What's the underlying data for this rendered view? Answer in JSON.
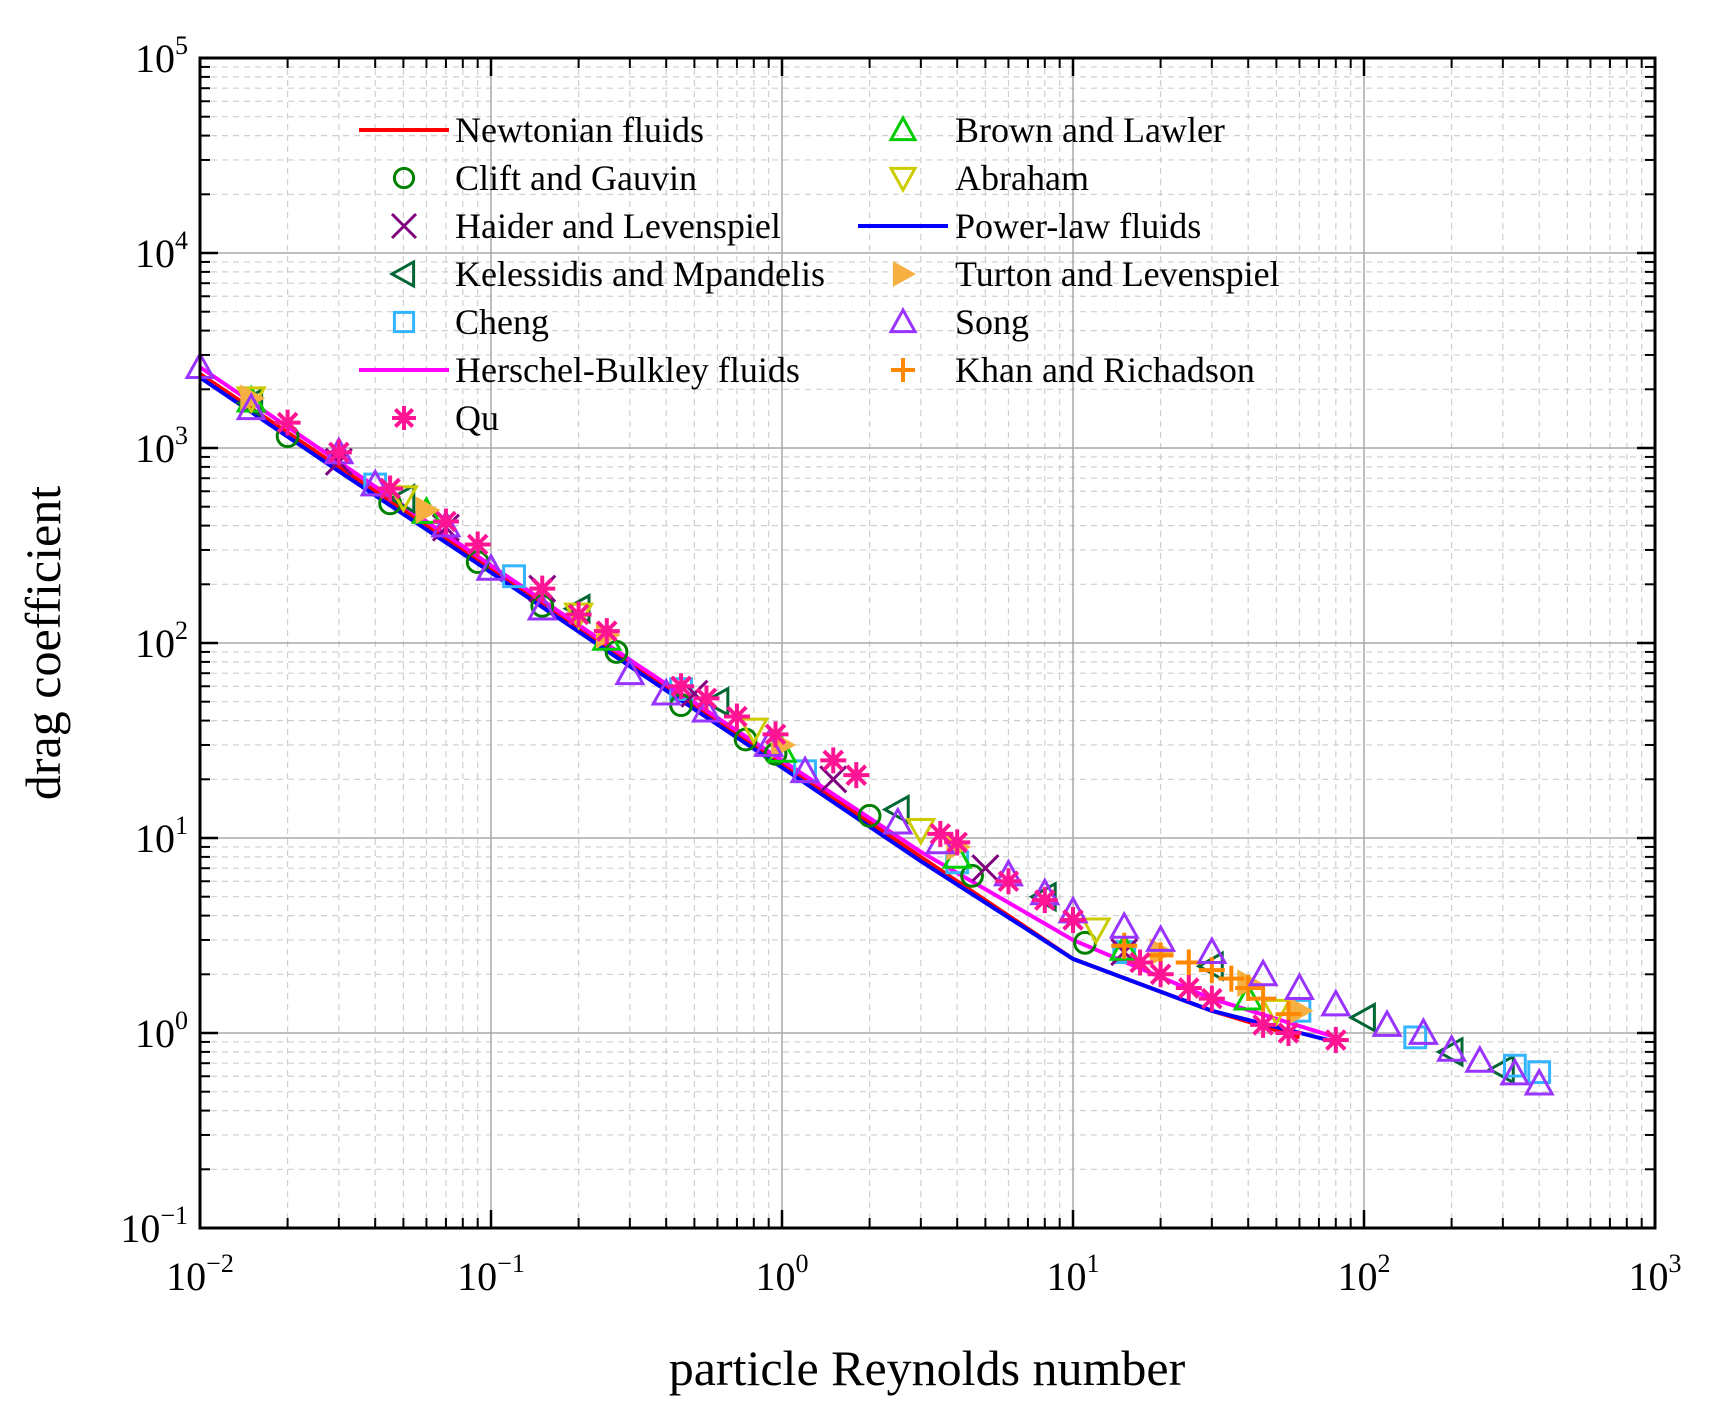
{
  "chart_data": {
    "type": "scatter",
    "x_scale": "log",
    "y_scale": "log",
    "xlim": [
      0.01,
      1000
    ],
    "ylim": [
      0.1,
      100000
    ],
    "xlabel": "particle Reynolds number",
    "ylabel": "drag coefficient",
    "x_ticks": [
      {
        "base": "10",
        "exp": "−2",
        "value": 0.01
      },
      {
        "base": "10",
        "exp": "−1",
        "value": 0.1
      },
      {
        "base": "10",
        "exp": "0",
        "value": 1
      },
      {
        "base": "10",
        "exp": "1",
        "value": 10
      },
      {
        "base": "10",
        "exp": "2",
        "value": 100
      },
      {
        "base": "10",
        "exp": "3",
        "value": 1000
      }
    ],
    "y_ticks": [
      {
        "base": "10",
        "exp": "−1",
        "value": 0.1
      },
      {
        "base": "10",
        "exp": "0",
        "value": 1
      },
      {
        "base": "10",
        "exp": "1",
        "value": 10
      },
      {
        "base": "10",
        "exp": "2",
        "value": 100
      },
      {
        "base": "10",
        "exp": "3",
        "value": 1000
      },
      {
        "base": "10",
        "exp": "4",
        "value": 10000
      },
      {
        "base": "10",
        "exp": "5",
        "value": 100000
      }
    ],
    "grid": true,
    "legend_position": "top-left",
    "series": [
      {
        "name": "Newtonian fluids",
        "marker": "line",
        "color": "#ff0000",
        "x": [
          0.01,
          0.03,
          0.1,
          0.3,
          1,
          3,
          10,
          30,
          60
        ],
        "y": [
          2400,
          800,
          240,
          80,
          24,
          8,
          2.4,
          1.3,
          0.95
        ]
      },
      {
        "name": "Clift and Gauvin",
        "marker": "circle",
        "color": "#008000",
        "x": [
          0.02,
          0.045,
          0.09,
          0.15,
          0.27,
          0.45,
          0.75,
          0.95,
          2,
          4.5,
          11
        ],
        "y": [
          1150,
          520,
          260,
          155,
          90,
          48,
          32,
          27,
          13,
          6.4,
          2.9
        ]
      },
      {
        "name": "Haider and Levenspiel",
        "marker": "x",
        "color": "#800080",
        "x": [
          0.03,
          0.07,
          0.15,
          0.5,
          1.5,
          5,
          15
        ],
        "y": [
          850,
          390,
          190,
          55,
          20,
          7,
          2.6
        ]
      },
      {
        "name": "Kelessidis and Mpandelis",
        "marker": "triangle-left",
        "color": "#006633",
        "x": [
          0.015,
          0.05,
          0.2,
          0.6,
          2.5,
          8,
          30,
          100,
          200,
          300
        ],
        "y": [
          1700,
          550,
          150,
          50,
          14,
          5,
          2.2,
          1.2,
          0.8,
          0.65
        ]
      },
      {
        "name": "Cheng",
        "marker": "square",
        "color": "#33b5ff",
        "x": [
          0.04,
          0.12,
          0.45,
          1.2,
          4,
          15,
          60,
          150,
          330,
          400
        ],
        "y": [
          650,
          220,
          58,
          22,
          7.5,
          2.6,
          1.3,
          0.95,
          0.68,
          0.63
        ]
      },
      {
        "name": "Herschel-Bulkley fluids",
        "marker": "line",
        "color": "#ff00ff",
        "x": [
          0.01,
          0.03,
          0.1,
          0.3,
          1,
          3,
          10,
          30,
          80
        ],
        "y": [
          2600,
          850,
          250,
          82,
          25,
          8.5,
          3.0,
          1.5,
          0.95
        ]
      },
      {
        "name": "Qu",
        "marker": "asterisk",
        "color": "#ff1493",
        "x": [
          0.02,
          0.03,
          0.045,
          0.07,
          0.09,
          0.15,
          0.2,
          0.25,
          0.45,
          0.55,
          0.7,
          0.95,
          1.5,
          1.8,
          3.5,
          4,
          6,
          8,
          10,
          17,
          20,
          25,
          30,
          45,
          55,
          80
        ],
        "y": [
          1350,
          950,
          620,
          420,
          320,
          190,
          140,
          115,
          60,
          52,
          42,
          34,
          25,
          21,
          10.5,
          9.5,
          6,
          4.8,
          3.8,
          2.3,
          2.0,
          1.7,
          1.5,
          1.1,
          1.0,
          0.92
        ]
      },
      {
        "name": "Brown and Lawler",
        "marker": "triangle-up",
        "color": "#00cc00",
        "x": [
          0.015,
          0.06,
          0.25,
          1,
          4,
          15,
          40
        ],
        "y": [
          1750,
          470,
          105,
          28,
          8,
          2.7,
          1.5
        ]
      },
      {
        "name": "Abraham",
        "marker": "triangle-down",
        "color": "#cccc00",
        "x": [
          0.015,
          0.05,
          0.2,
          0.8,
          3,
          12,
          50
        ],
        "y": [
          1800,
          560,
          140,
          36,
          11,
          3.4,
          1.3
        ]
      },
      {
        "name": "Power-law fluids",
        "marker": "line",
        "color": "#0000ff",
        "x": [
          0.01,
          0.03,
          0.1,
          0.3,
          1,
          3,
          10,
          30,
          80
        ],
        "y": [
          2300,
          760,
          230,
          76,
          23,
          7.6,
          2.4,
          1.3,
          0.9
        ]
      },
      {
        "name": "Turton and Levenspiel",
        "marker": "triangle-right",
        "color": "#f5b041",
        "x": [
          0.015,
          0.06,
          0.25,
          1,
          4,
          20,
          40,
          60
        ],
        "y": [
          1800,
          480,
          110,
          30,
          9,
          2.6,
          1.8,
          1.3
        ]
      },
      {
        "name": "Song",
        "marker": "triangle-up",
        "color": "#9933ff",
        "x": [
          0.01,
          0.015,
          0.03,
          0.04,
          0.07,
          0.1,
          0.15,
          0.3,
          0.4,
          0.55,
          0.9,
          1.2,
          2.5,
          3.5,
          6,
          8,
          10,
          15,
          20,
          30,
          45,
          60,
          80,
          120,
          160,
          200,
          250,
          330,
          400
        ],
        "y": [
          2600,
          1600,
          950,
          650,
          400,
          240,
          150,
          70,
          55,
          45,
          30,
          22,
          12,
          9.5,
          6.5,
          5.2,
          4.2,
          3.5,
          3.0,
          2.6,
          2.0,
          1.7,
          1.4,
          1.1,
          1.0,
          0.82,
          0.72,
          0.62,
          0.55
        ]
      },
      {
        "name": "Khan and Richadson",
        "marker": "plus",
        "color": "#ff8800",
        "x": [
          15,
          20,
          25,
          30,
          35,
          40,
          45,
          55
        ],
        "y": [
          2.8,
          2.5,
          2.3,
          2.1,
          1.9,
          1.7,
          1.5,
          1.25
        ]
      }
    ]
  }
}
